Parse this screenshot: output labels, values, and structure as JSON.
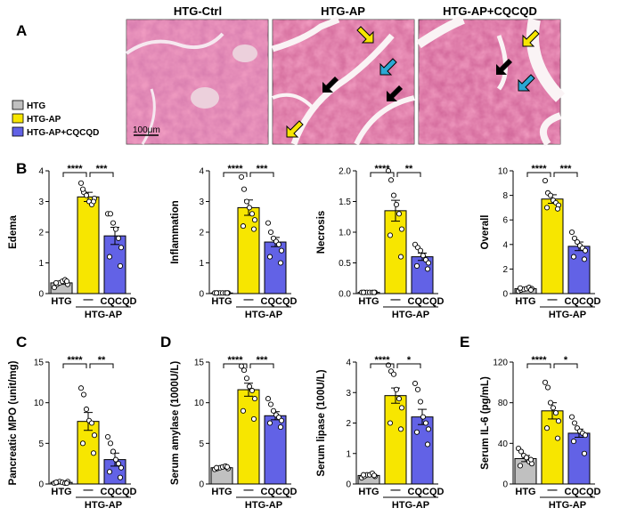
{
  "panel_letters": {
    "A": "A",
    "B": "B",
    "C": "C",
    "D": "D",
    "E": "E"
  },
  "histology": {
    "titles": [
      "HTG-Ctrl",
      "HTG-AP",
      "HTG-AP+CQCQD"
    ],
    "scale_bar": "100μm"
  },
  "legend": {
    "items": [
      {
        "label": "HTG",
        "color": "#c0c0c0"
      },
      {
        "label": "HTG-AP",
        "color": "#f7e600"
      },
      {
        "label": "HTG-AP+CQCQD",
        "color": "#6262e6"
      }
    ]
  },
  "group_labels": {
    "htg": "HTG",
    "dash": "—",
    "cqcqd": "CQCQD",
    "bracket": "HTG-AP"
  },
  "colors": {
    "htg": "#c0c0c0",
    "ap": "#f7e600",
    "cqcqd": "#6262e6"
  },
  "chart_data": [
    {
      "type": "bar",
      "id": "edema",
      "ylabel": "Edema",
      "categories": [
        "HTG",
        "HTG-AP",
        "HTG-AP+CQCQD"
      ],
      "values": [
        0.35,
        3.15,
        1.88
      ],
      "errors": [
        0.05,
        0.15,
        0.28
      ],
      "ylim": [
        0,
        4
      ],
      "yticks": [
        0,
        1,
        2,
        3,
        4
      ],
      "ticklabels": [
        "0",
        "1",
        "2",
        "3",
        "4"
      ],
      "points": [
        [
          0.2,
          0.3,
          0.35,
          0.4,
          0.45,
          0.3,
          0.35,
          0.4
        ],
        [
          3.6,
          3.3,
          3.2,
          3.0,
          2.9,
          3.1,
          3.4,
          3.0
        ],
        [
          2.6,
          2.6,
          2.3,
          2.1,
          1.8,
          1.5,
          1.2,
          0.9
        ]
      ],
      "sig": [
        "****",
        "***"
      ]
    },
    {
      "type": "bar",
      "id": "inflammation",
      "ylabel": "Inflammation",
      "categories": [
        "HTG",
        "HTG-AP",
        "HTG-AP+CQCQD"
      ],
      "values": [
        0.02,
        2.8,
        1.68
      ],
      "errors": [
        0.01,
        0.25,
        0.15
      ],
      "ylim": [
        0,
        4
      ],
      "yticks": [
        0,
        1,
        2,
        3,
        4
      ],
      "ticklabels": [
        "0",
        "1",
        "2",
        "3",
        "4"
      ],
      "points": [
        [
          0.02,
          0.02,
          0.02,
          0.02,
          0.02,
          0.02,
          0.02,
          0.02
        ],
        [
          3.8,
          3.4,
          3.0,
          2.8,
          2.6,
          2.4,
          2.2,
          2.1
        ],
        [
          2.3,
          2.0,
          1.8,
          1.7,
          1.6,
          1.4,
          1.2,
          1.0
        ]
      ],
      "sig": [
        "****",
        "***"
      ]
    },
    {
      "type": "bar",
      "id": "necrosis",
      "ylabel": "Necrosis",
      "categories": [
        "HTG",
        "HTG-AP",
        "HTG-AP+CQCQD"
      ],
      "values": [
        0.02,
        1.35,
        0.6
      ],
      "errors": [
        0.01,
        0.17,
        0.06
      ],
      "ylim": [
        0,
        2.0
      ],
      "yticks": [
        0,
        0.5,
        1.0,
        1.5,
        2.0
      ],
      "ticklabels": [
        "0.0",
        "0.5",
        "1.0",
        "1.5",
        "2.0"
      ],
      "points": [
        [
          0.02,
          0.02,
          0.02,
          0.02,
          0.02,
          0.02,
          0.02,
          0.02
        ],
        [
          2.0,
          1.85,
          1.6,
          1.45,
          1.3,
          1.05,
          0.95,
          0.6
        ],
        [
          0.8,
          0.75,
          0.7,
          0.62,
          0.55,
          0.5,
          0.45,
          0.4
        ]
      ],
      "sig": [
        "****",
        "**"
      ]
    },
    {
      "type": "bar",
      "id": "overall",
      "ylabel": "Overall",
      "categories": [
        "HTG",
        "HTG-AP",
        "HTG-AP+CQCQD"
      ],
      "values": [
        0.4,
        7.7,
        3.85
      ],
      "errors": [
        0.08,
        0.35,
        0.35
      ],
      "ylim": [
        0,
        10
      ],
      "yticks": [
        0,
        2,
        4,
        6,
        8,
        10
      ],
      "ticklabels": [
        "0",
        "2",
        "4",
        "6",
        "8",
        "10"
      ],
      "points": [
        [
          0.2,
          0.3,
          0.35,
          0.4,
          0.5,
          0.4,
          0.45,
          0.3
        ],
        [
          9.2,
          8.2,
          8.0,
          7.6,
          7.4,
          7.2,
          7.0,
          6.9
        ],
        [
          5.0,
          4.5,
          4.2,
          3.9,
          3.7,
          3.5,
          3.0,
          2.8
        ]
      ],
      "sig": [
        "****",
        "***"
      ]
    },
    {
      "type": "bar",
      "id": "mpo",
      "ylabel": "Pancreatic MPO (unit/mg)",
      "categories": [
        "HTG",
        "HTG-AP",
        "HTG-AP+CQCQD"
      ],
      "values": [
        0.2,
        7.7,
        3.0
      ],
      "errors": [
        0.1,
        1.1,
        0.8
      ],
      "ylim": [
        0,
        15
      ],
      "yticks": [
        0,
        5,
        10,
        15
      ],
      "ticklabels": [
        "0",
        "5",
        "10",
        "15"
      ],
      "points": [
        [
          0.1,
          0.2,
          0.3,
          0.2,
          0.1,
          0.3,
          0.2,
          0.1
        ],
        [
          11.8,
          11.0,
          9.2,
          7.8,
          7.5,
          6.0,
          5.0,
          3.8
        ],
        [
          5.8,
          5.0,
          4.0,
          3.0,
          2.5,
          2.0,
          1.5,
          0.8
        ]
      ],
      "sig": [
        "****",
        "**"
      ]
    },
    {
      "type": "bar",
      "id": "amylase",
      "ylabel": "Serum amylase (1000U/L)",
      "categories": [
        "HTG",
        "HTG-AP",
        "HTG-AP+CQCQD"
      ],
      "values": [
        2.0,
        11.6,
        8.4
      ],
      "errors": [
        0.1,
        0.8,
        0.5
      ],
      "ylim": [
        0,
        15
      ],
      "yticks": [
        0,
        5,
        10,
        15
      ],
      "ticklabels": [
        "0",
        "5",
        "10",
        "15"
      ],
      "points": [
        [
          1.8,
          1.9,
          2.0,
          2.1,
          2.2,
          1.9,
          2.0,
          2.1
        ],
        [
          14.5,
          14.0,
          13.0,
          12.0,
          11.5,
          10.5,
          9.0,
          8.0
        ],
        [
          10.5,
          9.8,
          9.0,
          8.5,
          8.2,
          7.8,
          7.5,
          7.0
        ]
      ],
      "sig": [
        "****",
        "***"
      ]
    },
    {
      "type": "bar",
      "id": "lipase",
      "ylabel": "Serum lipase (100U/L)",
      "categories": [
        "HTG",
        "HTG-AP",
        "HTG-AP+CQCQD"
      ],
      "values": [
        0.28,
        2.9,
        2.2
      ],
      "errors": [
        0.03,
        0.25,
        0.25
      ],
      "ylim": [
        0,
        4
      ],
      "yticks": [
        0,
        1,
        2,
        3,
        4
      ],
      "ticklabels": [
        "0",
        "1",
        "2",
        "3",
        "4"
      ],
      "points": [
        [
          0.2,
          0.25,
          0.3,
          0.3,
          0.35,
          0.25,
          0.3,
          0.28
        ],
        [
          3.9,
          3.7,
          3.6,
          3.1,
          2.8,
          2.5,
          2.0,
          1.8
        ],
        [
          3.3,
          3.1,
          2.7,
          2.2,
          2.0,
          1.8,
          1.7,
          1.3
        ]
      ],
      "sig": [
        "****",
        "*"
      ]
    },
    {
      "type": "bar",
      "id": "il6",
      "ylabel": "Serum IL-6 (pg/mL)",
      "categories": [
        "HTG",
        "HTG-AP",
        "HTG-AP+CQCQD"
      ],
      "values": [
        25,
        72,
        50
      ],
      "errors": [
        3,
        8,
        4
      ],
      "ylim": [
        0,
        120
      ],
      "yticks": [
        0,
        40,
        80,
        120
      ],
      "ticklabels": [
        "0",
        "40",
        "80",
        "120"
      ],
      "points": [
        [
          35,
          32,
          28,
          26,
          22,
          20,
          18,
          24
        ],
        [
          100,
          95,
          80,
          75,
          70,
          62,
          55,
          45
        ],
        [
          66,
          60,
          55,
          52,
          50,
          48,
          42,
          30
        ]
      ],
      "sig": [
        "****",
        "*"
      ]
    }
  ]
}
